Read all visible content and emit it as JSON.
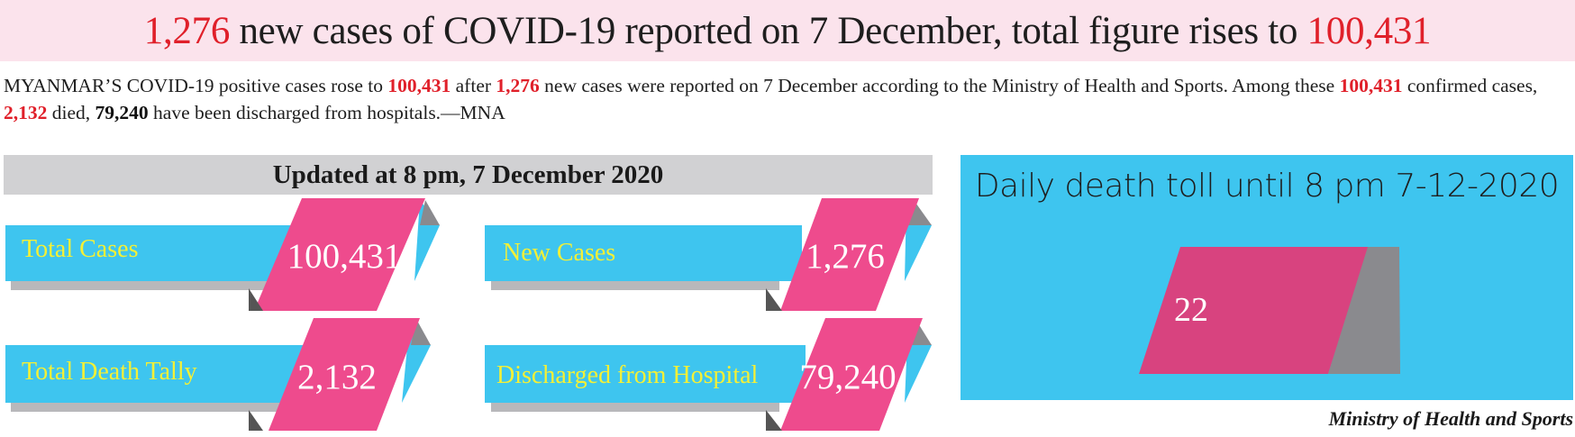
{
  "headline": {
    "cases_new": "1,276",
    "middle": " new cases of COVID-19 reported on 7 December, total figure rises to ",
    "total": "100,431"
  },
  "lead": {
    "p1": "MYANMAR’S COVID-19 positive cases rose to ",
    "total1": "100,431",
    "p2": " after ",
    "new": "1,276",
    "p3": " new cases were reported on 7 December according to the Ministry of Health and Sports. Among these ",
    "total2": "100,431",
    "p4": " confirmed cases, ",
    "died": "2,132",
    "p5": " died, ",
    "discharged": "79,240",
    "p6": " have been discharged from hospitals.—MNA"
  },
  "updated": "Updated at 8 pm, 7 December 2020",
  "stats": {
    "total_cases": {
      "label": "Total Cases",
      "value": "100,431"
    },
    "new_cases": {
      "label": "New Cases",
      "value": "1,276"
    },
    "total_death": {
      "label": "Total Death Tally",
      "value": "2,132"
    },
    "discharged": {
      "label": "Discharged from Hospital",
      "value": "79,240"
    }
  },
  "daily_death": {
    "title": "Daily death toll until 8 pm 7-12-2020",
    "value": "22"
  },
  "source": "Ministry of Health and Sports",
  "colors": {
    "pink": "#ee4b8d",
    "cyan": "#3ec5ef",
    "yellow_label": "#f4f036",
    "red_figure": "#e0202a",
    "grey": "#8a8a8e"
  }
}
